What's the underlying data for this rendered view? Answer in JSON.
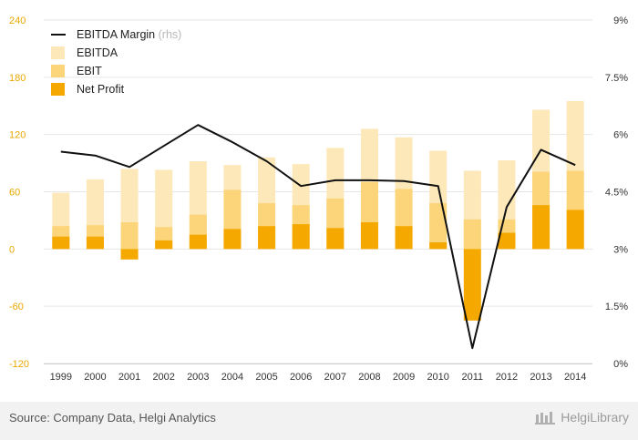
{
  "chart_data": {
    "type": "bar",
    "categories": [
      "1999",
      "2000",
      "2001",
      "2002",
      "2003",
      "2004",
      "2005",
      "2006",
      "2007",
      "2008",
      "2009",
      "2010",
      "2011",
      "2012",
      "2013",
      "2014"
    ],
    "series": [
      {
        "name": "EBITDA",
        "kind": "bar",
        "axis": "left",
        "color": "#fde8b9",
        "values": [
          59,
          73,
          84,
          83,
          92,
          88,
          96,
          89,
          106,
          126,
          117,
          103,
          82,
          93,
          146,
          155
        ]
      },
      {
        "name": "EBIT",
        "kind": "bar",
        "axis": "left",
        "color": "#fcd57a",
        "values": [
          24,
          25,
          28,
          23,
          36,
          62,
          48,
          46,
          53,
          70,
          63,
          48,
          31,
          31,
          81,
          82
        ]
      },
      {
        "name": "Net Profit",
        "kind": "bar",
        "axis": "left",
        "color": "#f5a900",
        "values": [
          13,
          13,
          -11,
          9,
          15,
          21,
          24,
          26,
          22,
          28,
          24,
          7,
          -75,
          17,
          46,
          41
        ]
      },
      {
        "name": "EBITDA Margin",
        "kind": "line",
        "axis": "right",
        "color": "#111111",
        "values": [
          5.55,
          5.45,
          5.15,
          5.7,
          6.25,
          5.8,
          5.3,
          4.65,
          4.8,
          4.8,
          4.78,
          4.65,
          0.4,
          4.1,
          5.6,
          5.2
        ]
      }
    ],
    "legend": [
      {
        "label": "EBITDA Margin",
        "sub": "(rhs)",
        "marker": "line",
        "color": "#111111"
      },
      {
        "label": "EBITDA",
        "sub": "",
        "marker": "box",
        "color": "#fde8b9"
      },
      {
        "label": "EBIT",
        "sub": "",
        "marker": "box",
        "color": "#fcd57a"
      },
      {
        "label": "Net Profit",
        "sub": "",
        "marker": "box",
        "color": "#f5a900"
      }
    ],
    "legend_position": "top-left",
    "y_left": {
      "ylim": [
        -120,
        240
      ],
      "ticks": [
        240,
        180,
        120,
        60,
        0,
        -60,
        -120
      ],
      "tick_labels": [
        "240",
        "180",
        "120",
        "60",
        "0",
        "-60",
        "-120"
      ],
      "color": "#e8a800"
    },
    "y_right": {
      "ylim": [
        0,
        9
      ],
      "ticks": [
        9,
        7.5,
        6,
        4.5,
        3,
        1.5,
        0
      ],
      "tick_labels": [
        "9%",
        "7.5%",
        "6%",
        "4.5%",
        "3%",
        "1.5%",
        "0%"
      ]
    },
    "grid": true,
    "title": "",
    "xlabel": "",
    "ylabel": ""
  },
  "footer": {
    "source": "Source: Company Data, Helgi Analytics",
    "brand": "HelgiLibrary"
  }
}
